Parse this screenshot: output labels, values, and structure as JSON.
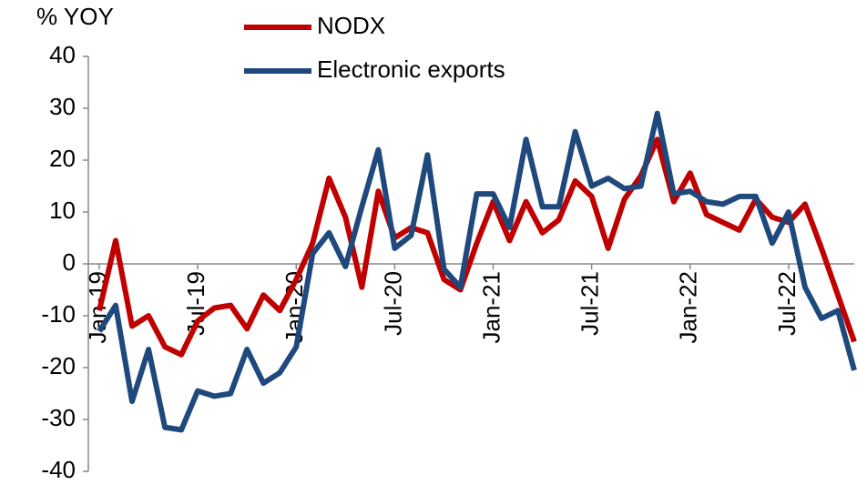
{
  "chart_data": {
    "type": "line",
    "ylabel": "% YOY",
    "categories": [
      "Jan-19",
      null,
      null,
      null,
      null,
      null,
      "Jul-19",
      null,
      null,
      null,
      null,
      null,
      "Jan-20",
      null,
      null,
      null,
      null,
      null,
      "Jul-20",
      null,
      null,
      null,
      null,
      null,
      "Jan-21",
      null,
      null,
      null,
      null,
      null,
      "Jul-21",
      null,
      null,
      null,
      null,
      null,
      "Jan-22",
      null,
      null,
      null,
      null,
      null,
      "Jul-22",
      null,
      null,
      null,
      null
    ],
    "series": [
      {
        "name": "NODX",
        "color": "#c00000",
        "values": [
          -9,
          4.5,
          -12,
          -10,
          -16,
          -17.5,
          -11,
          -8.5,
          -8,
          -12.5,
          -6,
          -9,
          -3,
          4,
          16.5,
          9,
          -4.5,
          14,
          5,
          7,
          6,
          -3,
          -5,
          4,
          12,
          4.5,
          12,
          6,
          8.5,
          16,
          13,
          3,
          12.5,
          17,
          24,
          12,
          17.5,
          9.5,
          8,
          6.5,
          12.5,
          9,
          8,
          11.5,
          3,
          -6,
          -15
        ]
      },
      {
        "name": "Electronic exports",
        "color": "#1f497d",
        "values": [
          -13,
          -8,
          -26.5,
          -16.5,
          -31.5,
          -32,
          -24.5,
          -25.5,
          -25,
          -16.5,
          -23,
          -21,
          -16,
          2,
          6,
          -0.5,
          11,
          22,
          3,
          5.5,
          21,
          -1,
          -4.5,
          13.5,
          13.5,
          7,
          24,
          11,
          11,
          25.5,
          15,
          16.5,
          14.5,
          15,
          29,
          13.5,
          14,
          12,
          11.5,
          13,
          13,
          4,
          10,
          -4.5,
          -10.5,
          -9,
          -20.5
        ]
      }
    ],
    "ylim": [
      -40,
      40
    ],
    "yticks": [
      -40,
      -30,
      -20,
      -10,
      0,
      10,
      20,
      30,
      40
    ]
  }
}
